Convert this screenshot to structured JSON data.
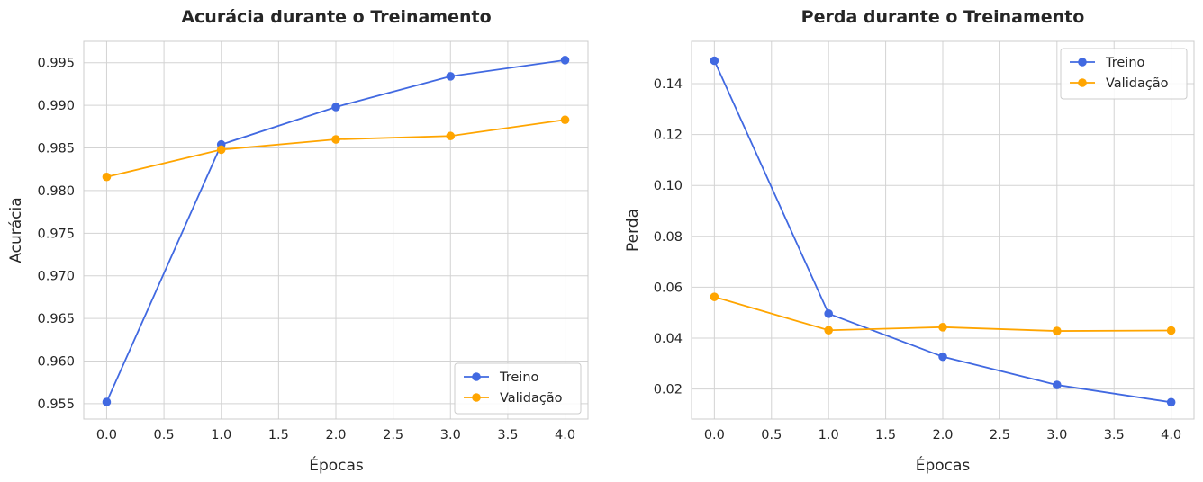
{
  "chart_data": [
    {
      "type": "line",
      "title": "Acurácia durante o Treinamento",
      "xlabel": "Épocas",
      "ylabel": "Acurácia",
      "x": [
        0,
        1,
        2,
        3,
        4
      ],
      "xlim": [
        -0.2,
        4.2
      ],
      "ylim": [
        0.9532,
        0.9975
      ],
      "xticks": [
        0.0,
        0.5,
        1.0,
        1.5,
        2.0,
        2.5,
        3.0,
        3.5,
        4.0
      ],
      "xtick_labels": [
        "0.0",
        "0.5",
        "1.0",
        "1.5",
        "2.0",
        "2.5",
        "3.0",
        "3.5",
        "4.0"
      ],
      "yticks": [
        0.955,
        0.96,
        0.965,
        0.97,
        0.975,
        0.98,
        0.985,
        0.99,
        0.995
      ],
      "ytick_labels": [
        "0.955",
        "0.960",
        "0.965",
        "0.970",
        "0.975",
        "0.980",
        "0.985",
        "0.990",
        "0.995"
      ],
      "grid": true,
      "legend_position": "lower-right",
      "series": [
        {
          "name": "Treino",
          "color": "#4169e1",
          "values": [
            0.9552,
            0.9854,
            0.9898,
            0.9934,
            0.9953
          ]
        },
        {
          "name": "Validação",
          "color": "#ffa500",
          "values": [
            0.9816,
            0.9848,
            0.986,
            0.9864,
            0.9883
          ]
        }
      ]
    },
    {
      "type": "line",
      "title": "Perda durante o Treinamento",
      "xlabel": "Épocas",
      "ylabel": "Perda",
      "x": [
        0,
        1,
        2,
        3,
        4
      ],
      "xlim": [
        -0.2,
        4.2
      ],
      "ylim": [
        0.0082,
        0.1566
      ],
      "xticks": [
        0.0,
        0.5,
        1.0,
        1.5,
        2.0,
        2.5,
        3.0,
        3.5,
        4.0
      ],
      "xtick_labels": [
        "0.0",
        "0.5",
        "1.0",
        "1.5",
        "2.0",
        "2.5",
        "3.0",
        "3.5",
        "4.0"
      ],
      "yticks": [
        0.02,
        0.04,
        0.06,
        0.08,
        0.1,
        0.12,
        0.14
      ],
      "ytick_labels": [
        "0.02",
        "0.04",
        "0.06",
        "0.08",
        "0.10",
        "0.12",
        "0.14"
      ],
      "grid": true,
      "legend_position": "upper-right",
      "series": [
        {
          "name": "Treino",
          "color": "#4169e1",
          "values": [
            0.149,
            0.0496,
            0.0327,
            0.0216,
            0.0148
          ]
        },
        {
          "name": "Validação",
          "color": "#ffa500",
          "values": [
            0.0562,
            0.0431,
            0.0443,
            0.0428,
            0.043
          ]
        }
      ]
    }
  ]
}
